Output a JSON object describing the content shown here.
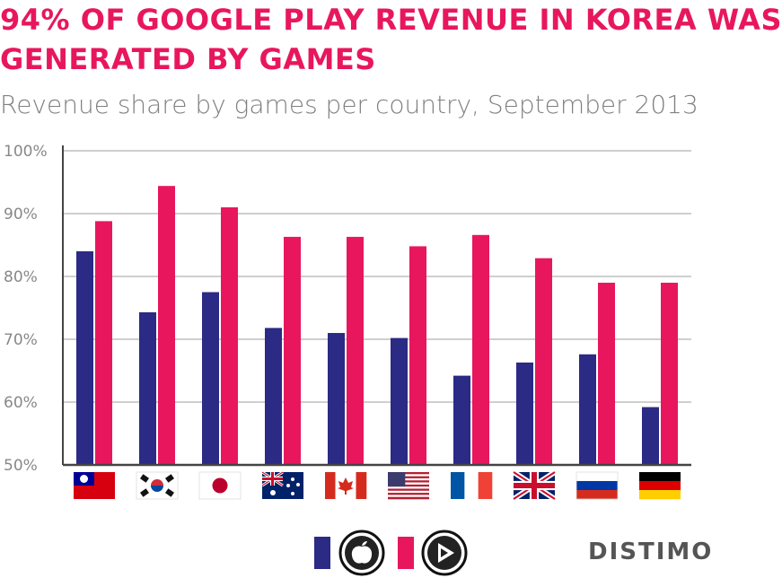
{
  "title_lines": [
    "94% OF GOOGLE PLAY REVENUE IN KOREA WAS",
    "GENERATED BY GAMES"
  ],
  "subtitle": "Revenue share by games per country, September 2013",
  "brand": "DISTIMO",
  "colors": {
    "ios": "#2B2A85",
    "google_play": "#E8175D",
    "title": "#E8175D",
    "subtitle": "#808080",
    "axis": "#444444",
    "grid": "#bfbfbf"
  },
  "legend": [
    {
      "store": "ios",
      "icon": "apple-icon"
    },
    {
      "store": "google_play",
      "icon": "play-icon"
    }
  ],
  "chart_data": {
    "type": "bar",
    "categories": [
      "Taiwan",
      "South Korea",
      "Japan",
      "Australia",
      "Canada",
      "United States",
      "France",
      "United Kingdom",
      "Russia",
      "Germany"
    ],
    "category_display": "flag-icons",
    "series": [
      {
        "key": "ios",
        "values": [
          84,
          74.3,
          77.5,
          71.8,
          71,
          70.2,
          64.2,
          66.3,
          67.6,
          59.2
        ]
      },
      {
        "key": "google_play",
        "values": [
          88.8,
          94.4,
          91,
          86.3,
          86.3,
          84.8,
          86.6,
          82.9,
          79,
          79
        ]
      }
    ],
    "yticks": [
      "50%",
      "60%",
      "70%",
      "80%",
      "90%",
      "100%"
    ],
    "ylim": [
      50,
      100
    ],
    "grid": true,
    "legend_position": "bottom-center"
  }
}
